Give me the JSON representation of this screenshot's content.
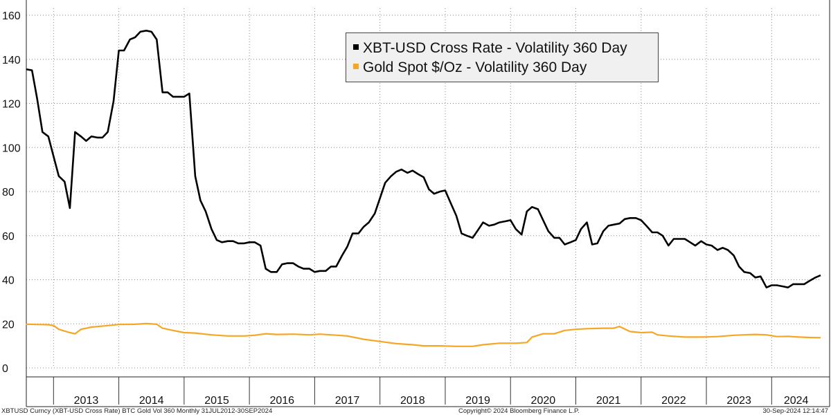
{
  "chart_data": {
    "type": "line",
    "ylim": [
      0,
      160
    ],
    "yticks": [
      0,
      20,
      40,
      60,
      80,
      100,
      120,
      140,
      160
    ],
    "ytick_labels": [
      "0",
      "20",
      "40",
      "60",
      "80",
      "100",
      "120",
      "140",
      "160"
    ],
    "xlim": [
      2012.583,
      2024.75
    ],
    "year_labels": [
      "2013",
      "2014",
      "2015",
      "2016",
      "2017",
      "2018",
      "2019",
      "2020",
      "2021",
      "2022",
      "2023",
      "2024"
    ],
    "grid": true,
    "legend_position": "top-center",
    "series": [
      {
        "name": "XBT-USD Cross Rate - Volatility 360 Day",
        "color": "#000000",
        "points": [
          [
            2012.58,
            135.5
          ],
          [
            2012.67,
            135
          ],
          [
            2012.75,
            122
          ],
          [
            2012.83,
            107
          ],
          [
            2012.92,
            105
          ],
          [
            2013.0,
            96
          ],
          [
            2013.08,
            87
          ],
          [
            2013.17,
            84.5
          ],
          [
            2013.25,
            72.5
          ],
          [
            2013.33,
            107
          ],
          [
            2013.42,
            105
          ],
          [
            2013.5,
            103
          ],
          [
            2013.58,
            105
          ],
          [
            2013.67,
            104.5
          ],
          [
            2013.75,
            104.5
          ],
          [
            2013.83,
            107
          ],
          [
            2013.92,
            121
          ],
          [
            2014.0,
            144
          ],
          [
            2014.08,
            144
          ],
          [
            2014.17,
            149
          ],
          [
            2014.25,
            150
          ],
          [
            2014.33,
            152.5
          ],
          [
            2014.42,
            153
          ],
          [
            2014.5,
            152.5
          ],
          [
            2014.58,
            149
          ],
          [
            2014.67,
            125
          ],
          [
            2014.75,
            125
          ],
          [
            2014.83,
            123
          ],
          [
            2014.92,
            123
          ],
          [
            2015.0,
            123
          ],
          [
            2015.08,
            124.5
          ],
          [
            2015.17,
            87
          ],
          [
            2015.25,
            76
          ],
          [
            2015.33,
            71
          ],
          [
            2015.42,
            63
          ],
          [
            2015.5,
            58
          ],
          [
            2015.58,
            57
          ],
          [
            2015.67,
            57.5
          ],
          [
            2015.75,
            57.5
          ],
          [
            2015.83,
            56.5
          ],
          [
            2015.92,
            56.5
          ],
          [
            2016.0,
            57
          ],
          [
            2016.08,
            57
          ],
          [
            2016.17,
            55.5
          ],
          [
            2016.25,
            45
          ],
          [
            2016.33,
            43.5
          ],
          [
            2016.42,
            43.5
          ],
          [
            2016.5,
            47
          ],
          [
            2016.58,
            47.5
          ],
          [
            2016.67,
            47.5
          ],
          [
            2016.75,
            46
          ],
          [
            2016.83,
            45
          ],
          [
            2016.92,
            45
          ],
          [
            2017.0,
            43.5
          ],
          [
            2017.08,
            44
          ],
          [
            2017.17,
            44
          ],
          [
            2017.25,
            46
          ],
          [
            2017.33,
            46
          ],
          [
            2017.42,
            51
          ],
          [
            2017.5,
            55
          ],
          [
            2017.58,
            61
          ],
          [
            2017.67,
            61
          ],
          [
            2017.75,
            64
          ],
          [
            2017.83,
            66
          ],
          [
            2017.92,
            70
          ],
          [
            2018.0,
            77
          ],
          [
            2018.08,
            84
          ],
          [
            2018.17,
            87
          ],
          [
            2018.25,
            89
          ],
          [
            2018.33,
            90
          ],
          [
            2018.42,
            88.5
          ],
          [
            2018.5,
            89.5
          ],
          [
            2018.58,
            88
          ],
          [
            2018.67,
            86.5
          ],
          [
            2018.75,
            81
          ],
          [
            2018.83,
            79
          ],
          [
            2018.92,
            80
          ],
          [
            2019.0,
            80.5
          ],
          [
            2019.08,
            75
          ],
          [
            2019.17,
            69
          ],
          [
            2019.25,
            61
          ],
          [
            2019.33,
            60
          ],
          [
            2019.42,
            59
          ],
          [
            2019.5,
            62.5
          ],
          [
            2019.58,
            66
          ],
          [
            2019.67,
            64.5
          ],
          [
            2019.75,
            65
          ],
          [
            2019.83,
            66
          ],
          [
            2019.92,
            66.5
          ],
          [
            2020.0,
            67
          ],
          [
            2020.08,
            63
          ],
          [
            2020.17,
            60.5
          ],
          [
            2020.25,
            71
          ],
          [
            2020.33,
            73
          ],
          [
            2020.42,
            72
          ],
          [
            2020.5,
            67
          ],
          [
            2020.58,
            62
          ],
          [
            2020.67,
            59
          ],
          [
            2020.75,
            59
          ],
          [
            2020.83,
            56
          ],
          [
            2020.92,
            57
          ],
          [
            2021.0,
            58
          ],
          [
            2021.08,
            63
          ],
          [
            2021.17,
            66
          ],
          [
            2021.25,
            56
          ],
          [
            2021.33,
            56.5
          ],
          [
            2021.42,
            62
          ],
          [
            2021.5,
            64.5
          ],
          [
            2021.58,
            65
          ],
          [
            2021.67,
            65.5
          ],
          [
            2021.75,
            67.5
          ],
          [
            2021.83,
            68
          ],
          [
            2021.92,
            68
          ],
          [
            2022.0,
            67
          ],
          [
            2022.08,
            64.5
          ],
          [
            2022.17,
            61.5
          ],
          [
            2022.25,
            61.5
          ],
          [
            2022.33,
            60
          ],
          [
            2022.42,
            55.5
          ],
          [
            2022.5,
            58.5
          ],
          [
            2022.58,
            58.5
          ],
          [
            2022.67,
            58.5
          ],
          [
            2022.75,
            57
          ],
          [
            2022.83,
            55.5
          ],
          [
            2022.92,
            57.5
          ],
          [
            2023.0,
            56
          ],
          [
            2023.08,
            55.5
          ],
          [
            2023.17,
            53.5
          ],
          [
            2023.25,
            54.5
          ],
          [
            2023.33,
            53.5
          ],
          [
            2023.42,
            51
          ],
          [
            2023.5,
            46
          ],
          [
            2023.58,
            43.5
          ],
          [
            2023.67,
            43
          ],
          [
            2023.75,
            41
          ],
          [
            2023.83,
            41.5
          ],
          [
            2023.92,
            36.5
          ],
          [
            2024.0,
            37.5
          ],
          [
            2024.08,
            37.5
          ],
          [
            2024.17,
            37
          ],
          [
            2024.25,
            36.5
          ],
          [
            2024.33,
            38
          ],
          [
            2024.42,
            38
          ],
          [
            2024.5,
            38
          ],
          [
            2024.58,
            39.5
          ],
          [
            2024.67,
            41
          ],
          [
            2024.75,
            42
          ]
        ]
      },
      {
        "name": "Gold Spot $/Oz - Volatility 360 Day",
        "color": "#f5a623",
        "points": [
          [
            2012.58,
            19.8
          ],
          [
            2012.75,
            19.7
          ],
          [
            2012.92,
            19.6
          ],
          [
            2013.0,
            19.2
          ],
          [
            2013.08,
            17.5
          ],
          [
            2013.25,
            16
          ],
          [
            2013.33,
            15.5
          ],
          [
            2013.42,
            17.5
          ],
          [
            2013.58,
            18.5
          ],
          [
            2013.83,
            19.2
          ],
          [
            2014.0,
            19.7
          ],
          [
            2014.25,
            19.8
          ],
          [
            2014.42,
            20.1
          ],
          [
            2014.58,
            19.8
          ],
          [
            2014.67,
            18
          ],
          [
            2014.83,
            17
          ],
          [
            2015.0,
            16
          ],
          [
            2015.17,
            15.8
          ],
          [
            2015.42,
            15
          ],
          [
            2015.67,
            14.5
          ],
          [
            2015.92,
            14.5
          ],
          [
            2016.08,
            14.8
          ],
          [
            2016.25,
            15.5
          ],
          [
            2016.42,
            15.2
          ],
          [
            2016.67,
            15.3
          ],
          [
            2016.92,
            15
          ],
          [
            2017.08,
            15.3
          ],
          [
            2017.25,
            15
          ],
          [
            2017.5,
            14.5
          ],
          [
            2017.75,
            13
          ],
          [
            2018.0,
            12
          ],
          [
            2018.25,
            11
          ],
          [
            2018.5,
            10.5
          ],
          [
            2018.67,
            10
          ],
          [
            2018.92,
            10
          ],
          [
            2019.17,
            9.8
          ],
          [
            2019.42,
            9.8
          ],
          [
            2019.58,
            10.5
          ],
          [
            2019.83,
            11.2
          ],
          [
            2020.08,
            11.2
          ],
          [
            2020.25,
            11.5
          ],
          [
            2020.33,
            14
          ],
          [
            2020.5,
            15.5
          ],
          [
            2020.67,
            15.5
          ],
          [
            2020.83,
            17
          ],
          [
            2021.0,
            17.5
          ],
          [
            2021.17,
            17.8
          ],
          [
            2021.42,
            18
          ],
          [
            2021.58,
            18
          ],
          [
            2021.67,
            18.8
          ],
          [
            2021.83,
            16.5
          ],
          [
            2022.0,
            16
          ],
          [
            2022.17,
            16.2
          ],
          [
            2022.25,
            15
          ],
          [
            2022.42,
            14.5
          ],
          [
            2022.67,
            14
          ],
          [
            2022.92,
            14
          ],
          [
            2023.17,
            14.2
          ],
          [
            2023.42,
            14.8
          ],
          [
            2023.58,
            15
          ],
          [
            2023.75,
            15.2
          ],
          [
            2023.92,
            15
          ],
          [
            2024.08,
            14.2
          ],
          [
            2024.25,
            14.3
          ],
          [
            2024.42,
            14
          ],
          [
            2024.58,
            13.8
          ],
          [
            2024.75,
            13.7
          ]
        ]
      }
    ]
  },
  "legend": {
    "items": [
      {
        "label": "XBT-USD Cross Rate - Volatility 360 Day",
        "color": "#000000"
      },
      {
        "label": "Gold Spot $/Oz - Volatility 360 Day",
        "color": "#f5a623"
      }
    ]
  },
  "footer": {
    "left": "XBTUSD Curncy (XBT-USD Cross Rate) BTC Gold Vol 360  Monthly 31JUL2012-30SEP2024",
    "center": "Copyright© 2024 Bloomberg Finance L.P.",
    "right": "30-Sep-2024 12:14:47"
  }
}
